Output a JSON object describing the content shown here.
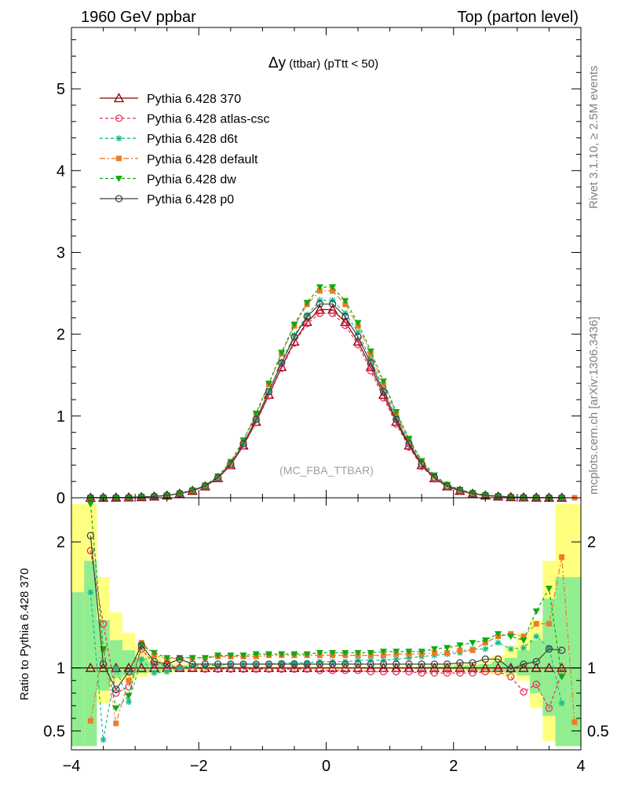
{
  "header": {
    "left": "1960 GeV ppbar",
    "right": "Top (parton level)"
  },
  "side_labels": {
    "rivet": "Rivet 3.1.10, ≥ 2.5M events",
    "mcplots": "mcplots.cern.ch [arXiv:1306.3436]"
  },
  "chart_data": [
    {
      "type": "line",
      "title_main": "Δy",
      "title_rest": " (ttbar) (pTtt < 50)",
      "watermark": "(MC_FBA_TTBAR)",
      "xlim": [
        -4.0,
        4.0
      ],
      "ylim": [
        0,
        5.75
      ],
      "y_ticks": [
        "0",
        "1",
        "2",
        "3",
        "4",
        "5"
      ],
      "x_ticks": [
        "−4",
        "−2",
        "0",
        "2",
        "4"
      ],
      "legend_position": "top-left",
      "bin_edges": [
        -4.0,
        -3.8,
        -3.6,
        -3.4,
        -3.2,
        -3.0,
        -2.8,
        -2.6,
        -2.4,
        -2.2,
        -2.0,
        -1.8,
        -1.6,
        -1.4,
        -1.2,
        -1.0,
        -0.8,
        -0.6,
        -0.4,
        -0.2,
        0.0,
        0.2,
        0.4,
        0.6,
        0.8,
        1.0,
        1.2,
        1.4,
        1.6,
        1.8,
        2.0,
        2.2,
        2.4,
        2.6,
        2.8,
        3.0,
        3.2,
        3.4,
        3.6,
        3.8,
        4.0
      ],
      "x": [
        -3.9,
        -3.7,
        -3.5,
        -3.3,
        -3.1,
        -2.9,
        -2.7,
        -2.5,
        -2.3,
        -2.1,
        -1.9,
        -1.7,
        -1.5,
        -1.3,
        -1.1,
        -0.9,
        -0.7,
        -0.5,
        -0.3,
        -0.1,
        0.1,
        0.3,
        0.5,
        0.7,
        0.9,
        1.1,
        1.3,
        1.5,
        1.7,
        1.9,
        2.1,
        2.3,
        2.5,
        2.7,
        2.9,
        3.1,
        3.3,
        3.5,
        3.7,
        3.9
      ],
      "reference": [
        0.0,
        0.001,
        0.002,
        0.003,
        0.005,
        0.009,
        0.016,
        0.028,
        0.05,
        0.085,
        0.14,
        0.24,
        0.4,
        0.64,
        0.93,
        1.26,
        1.6,
        1.91,
        2.15,
        2.3,
        2.3,
        2.15,
        1.91,
        1.6,
        1.26,
        0.93,
        0.64,
        0.4,
        0.24,
        0.14,
        0.085,
        0.05,
        0.028,
        0.016,
        0.009,
        0.005,
        0.003,
        0.002,
        0.001,
        0.0
      ],
      "series": [
        {
          "name": "Pythia 6.428 370",
          "color": "#8b0000",
          "dash": "",
          "marker": "triangle-open",
          "ratio": [
            null,
            1.0,
            1.0,
            1.0,
            1.0,
            1.0,
            1.0,
            1.0,
            1.0,
            1.0,
            1.0,
            1.0,
            1.0,
            1.0,
            1.0,
            1.0,
            1.0,
            1.0,
            1.0,
            1.0,
            1.0,
            1.0,
            1.0,
            1.0,
            1.0,
            1.0,
            1.0,
            1.0,
            1.0,
            1.0,
            1.0,
            1.0,
            1.0,
            1.0,
            1.0,
            1.0,
            1.0,
            1.0,
            1.0,
            null
          ]
        },
        {
          "name": "Pythia 6.428 atlas-csc",
          "color": "#e8305a",
          "dash": "4,3",
          "marker": "circle-open",
          "ratio": [
            null,
            1.93,
            1.35,
            0.8,
            0.85,
            1.15,
            1.03,
            1.02,
            1.0,
            1.0,
            0.99,
            0.99,
            0.99,
            0.99,
            0.99,
            0.99,
            0.99,
            0.99,
            0.99,
            0.98,
            0.98,
            0.98,
            0.98,
            0.97,
            0.97,
            0.97,
            0.97,
            0.96,
            0.96,
            0.96,
            0.96,
            0.96,
            0.97,
            0.97,
            0.93,
            0.81,
            0.87,
            0.68,
            0.96,
            null
          ]
        },
        {
          "name": "Pythia 6.428 d6t",
          "color": "#1ab88e",
          "dash": "4,3",
          "marker": "star",
          "ratio": [
            null,
            1.6,
            0.43,
            1.0,
            0.73,
            1.07,
            0.96,
            0.97,
            1.0,
            1.02,
            1.02,
            1.02,
            1.03,
            1.03,
            1.03,
            1.03,
            1.04,
            1.04,
            1.04,
            1.05,
            1.05,
            1.05,
            1.06,
            1.06,
            1.06,
            1.07,
            1.08,
            1.09,
            1.1,
            1.11,
            1.12,
            1.15,
            1.15,
            1.2,
            1.15,
            1.16,
            1.25,
            1.16,
            0.72,
            null
          ]
        },
        {
          "name": "Pythia 6.428 default",
          "color": "#f07a2a",
          "dash": "7,3,2,3",
          "marker": "square",
          "ratio": [
            null,
            0.58,
            1.15,
            0.56,
            0.9,
            1.2,
            1.1,
            1.07,
            1.08,
            1.08,
            1.08,
            1.09,
            1.09,
            1.09,
            1.09,
            1.1,
            1.1,
            1.1,
            1.1,
            1.1,
            1.1,
            1.1,
            1.1,
            1.1,
            1.1,
            1.11,
            1.11,
            1.11,
            1.12,
            1.12,
            1.14,
            1.14,
            1.2,
            1.25,
            1.27,
            1.25,
            1.35,
            1.35,
            1.88,
            0.57
          ]
        },
        {
          "name": "Pythia 6.428 dw",
          "color": "#12a812",
          "dash": "4,3",
          "marker": "triangle-down",
          "ratio": [
            null,
            2.3,
            1.15,
            0.68,
            0.78,
            1.18,
            1.12,
            1.08,
            1.08,
            1.08,
            1.08,
            1.1,
            1.1,
            1.1,
            1.11,
            1.11,
            1.11,
            1.11,
            1.11,
            1.12,
            1.12,
            1.12,
            1.12,
            1.12,
            1.13,
            1.13,
            1.13,
            1.13,
            1.15,
            1.16,
            1.18,
            1.2,
            1.22,
            1.27,
            1.25,
            1.22,
            1.45,
            1.63,
            0.93,
            null
          ]
        },
        {
          "name": "Pythia 6.428 p0",
          "color": "#404040",
          "dash": "",
          "marker": "circle-open",
          "ratio": [
            null,
            2.05,
            1.03,
            0.83,
            0.97,
            1.18,
            1.05,
            1.03,
            1.07,
            1.03,
            1.03,
            1.03,
            1.03,
            1.03,
            1.03,
            1.03,
            1.03,
            1.03,
            1.03,
            1.03,
            1.03,
            1.03,
            1.03,
            1.03,
            1.03,
            1.03,
            1.03,
            1.03,
            1.03,
            1.03,
            1.04,
            1.04,
            1.07,
            1.07,
            0.99,
            1.03,
            1.05,
            1.15,
            1.14,
            null
          ]
        }
      ]
    },
    {
      "type": "line",
      "ylabel": "Ratio to Pythia 6.428 370",
      "ylim": [
        0.35,
        2.35
      ],
      "y_ticks": [
        "0.5",
        "1",
        "2"
      ],
      "band_yellow": [
        [
          0.38,
          2.3
        ],
        [
          0.38,
          2.3
        ],
        [
          0.72,
          1.72
        ],
        [
          0.88,
          1.44
        ],
        [
          0.9,
          1.28
        ],
        [
          0.93,
          1.18
        ],
        [
          0.95,
          1.1
        ],
        [
          0.96,
          1.06
        ],
        [
          0.97,
          1.04
        ],
        [
          0.98,
          1.03
        ],
        [
          0.98,
          1.02
        ],
        [
          0.99,
          1.02
        ],
        [
          0.99,
          1.01
        ],
        [
          0.99,
          1.01
        ],
        [
          0.99,
          1.01
        ],
        [
          0.99,
          1.01
        ],
        [
          0.99,
          1.01
        ],
        [
          0.99,
          1.01
        ],
        [
          0.99,
          1.01
        ],
        [
          0.99,
          1.01
        ],
        [
          0.99,
          1.01
        ],
        [
          0.99,
          1.01
        ],
        [
          0.99,
          1.01
        ],
        [
          0.99,
          1.01
        ],
        [
          0.99,
          1.01
        ],
        [
          0.99,
          1.01
        ],
        [
          0.99,
          1.01
        ],
        [
          0.99,
          1.01
        ],
        [
          0.99,
          1.02
        ],
        [
          0.98,
          1.02
        ],
        [
          0.98,
          1.03
        ],
        [
          0.97,
          1.04
        ],
        [
          0.96,
          1.06
        ],
        [
          0.95,
          1.1
        ],
        [
          0.93,
          1.18
        ],
        [
          0.9,
          1.28
        ],
        [
          0.68,
          1.38
        ],
        [
          0.42,
          1.85
        ],
        [
          0.38,
          2.3
        ],
        [
          0.38,
          2.3
        ]
      ],
      "band_green": [
        [
          0.38,
          1.6
        ],
        [
          0.38,
          1.85
        ],
        [
          0.82,
          1.38
        ],
        [
          0.92,
          1.22
        ],
        [
          0.94,
          1.14
        ],
        [
          0.96,
          1.08
        ],
        [
          0.97,
          1.05
        ],
        [
          0.98,
          1.03
        ],
        [
          0.98,
          1.02
        ],
        [
          0.99,
          1.02
        ],
        [
          0.99,
          1.01
        ],
        [
          0.99,
          1.01
        ],
        [
          0.99,
          1.01
        ],
        [
          0.995,
          1.005
        ],
        [
          0.995,
          1.005
        ],
        [
          0.995,
          1.005
        ],
        [
          0.995,
          1.005
        ],
        [
          0.995,
          1.005
        ],
        [
          0.995,
          1.005
        ],
        [
          0.995,
          1.005
        ],
        [
          0.995,
          1.005
        ],
        [
          0.995,
          1.005
        ],
        [
          0.995,
          1.005
        ],
        [
          0.995,
          1.005
        ],
        [
          0.995,
          1.005
        ],
        [
          0.995,
          1.005
        ],
        [
          0.995,
          1.005
        ],
        [
          0.99,
          1.01
        ],
        [
          0.99,
          1.01
        ],
        [
          0.99,
          1.01
        ],
        [
          0.99,
          1.02
        ],
        [
          0.98,
          1.02
        ],
        [
          0.98,
          1.03
        ],
        [
          0.97,
          1.05
        ],
        [
          0.96,
          1.08
        ],
        [
          0.94,
          1.14
        ],
        [
          0.8,
          1.22
        ],
        [
          0.62,
          1.55
        ],
        [
          0.38,
          1.72
        ],
        [
          0.38,
          1.72
        ]
      ]
    }
  ]
}
